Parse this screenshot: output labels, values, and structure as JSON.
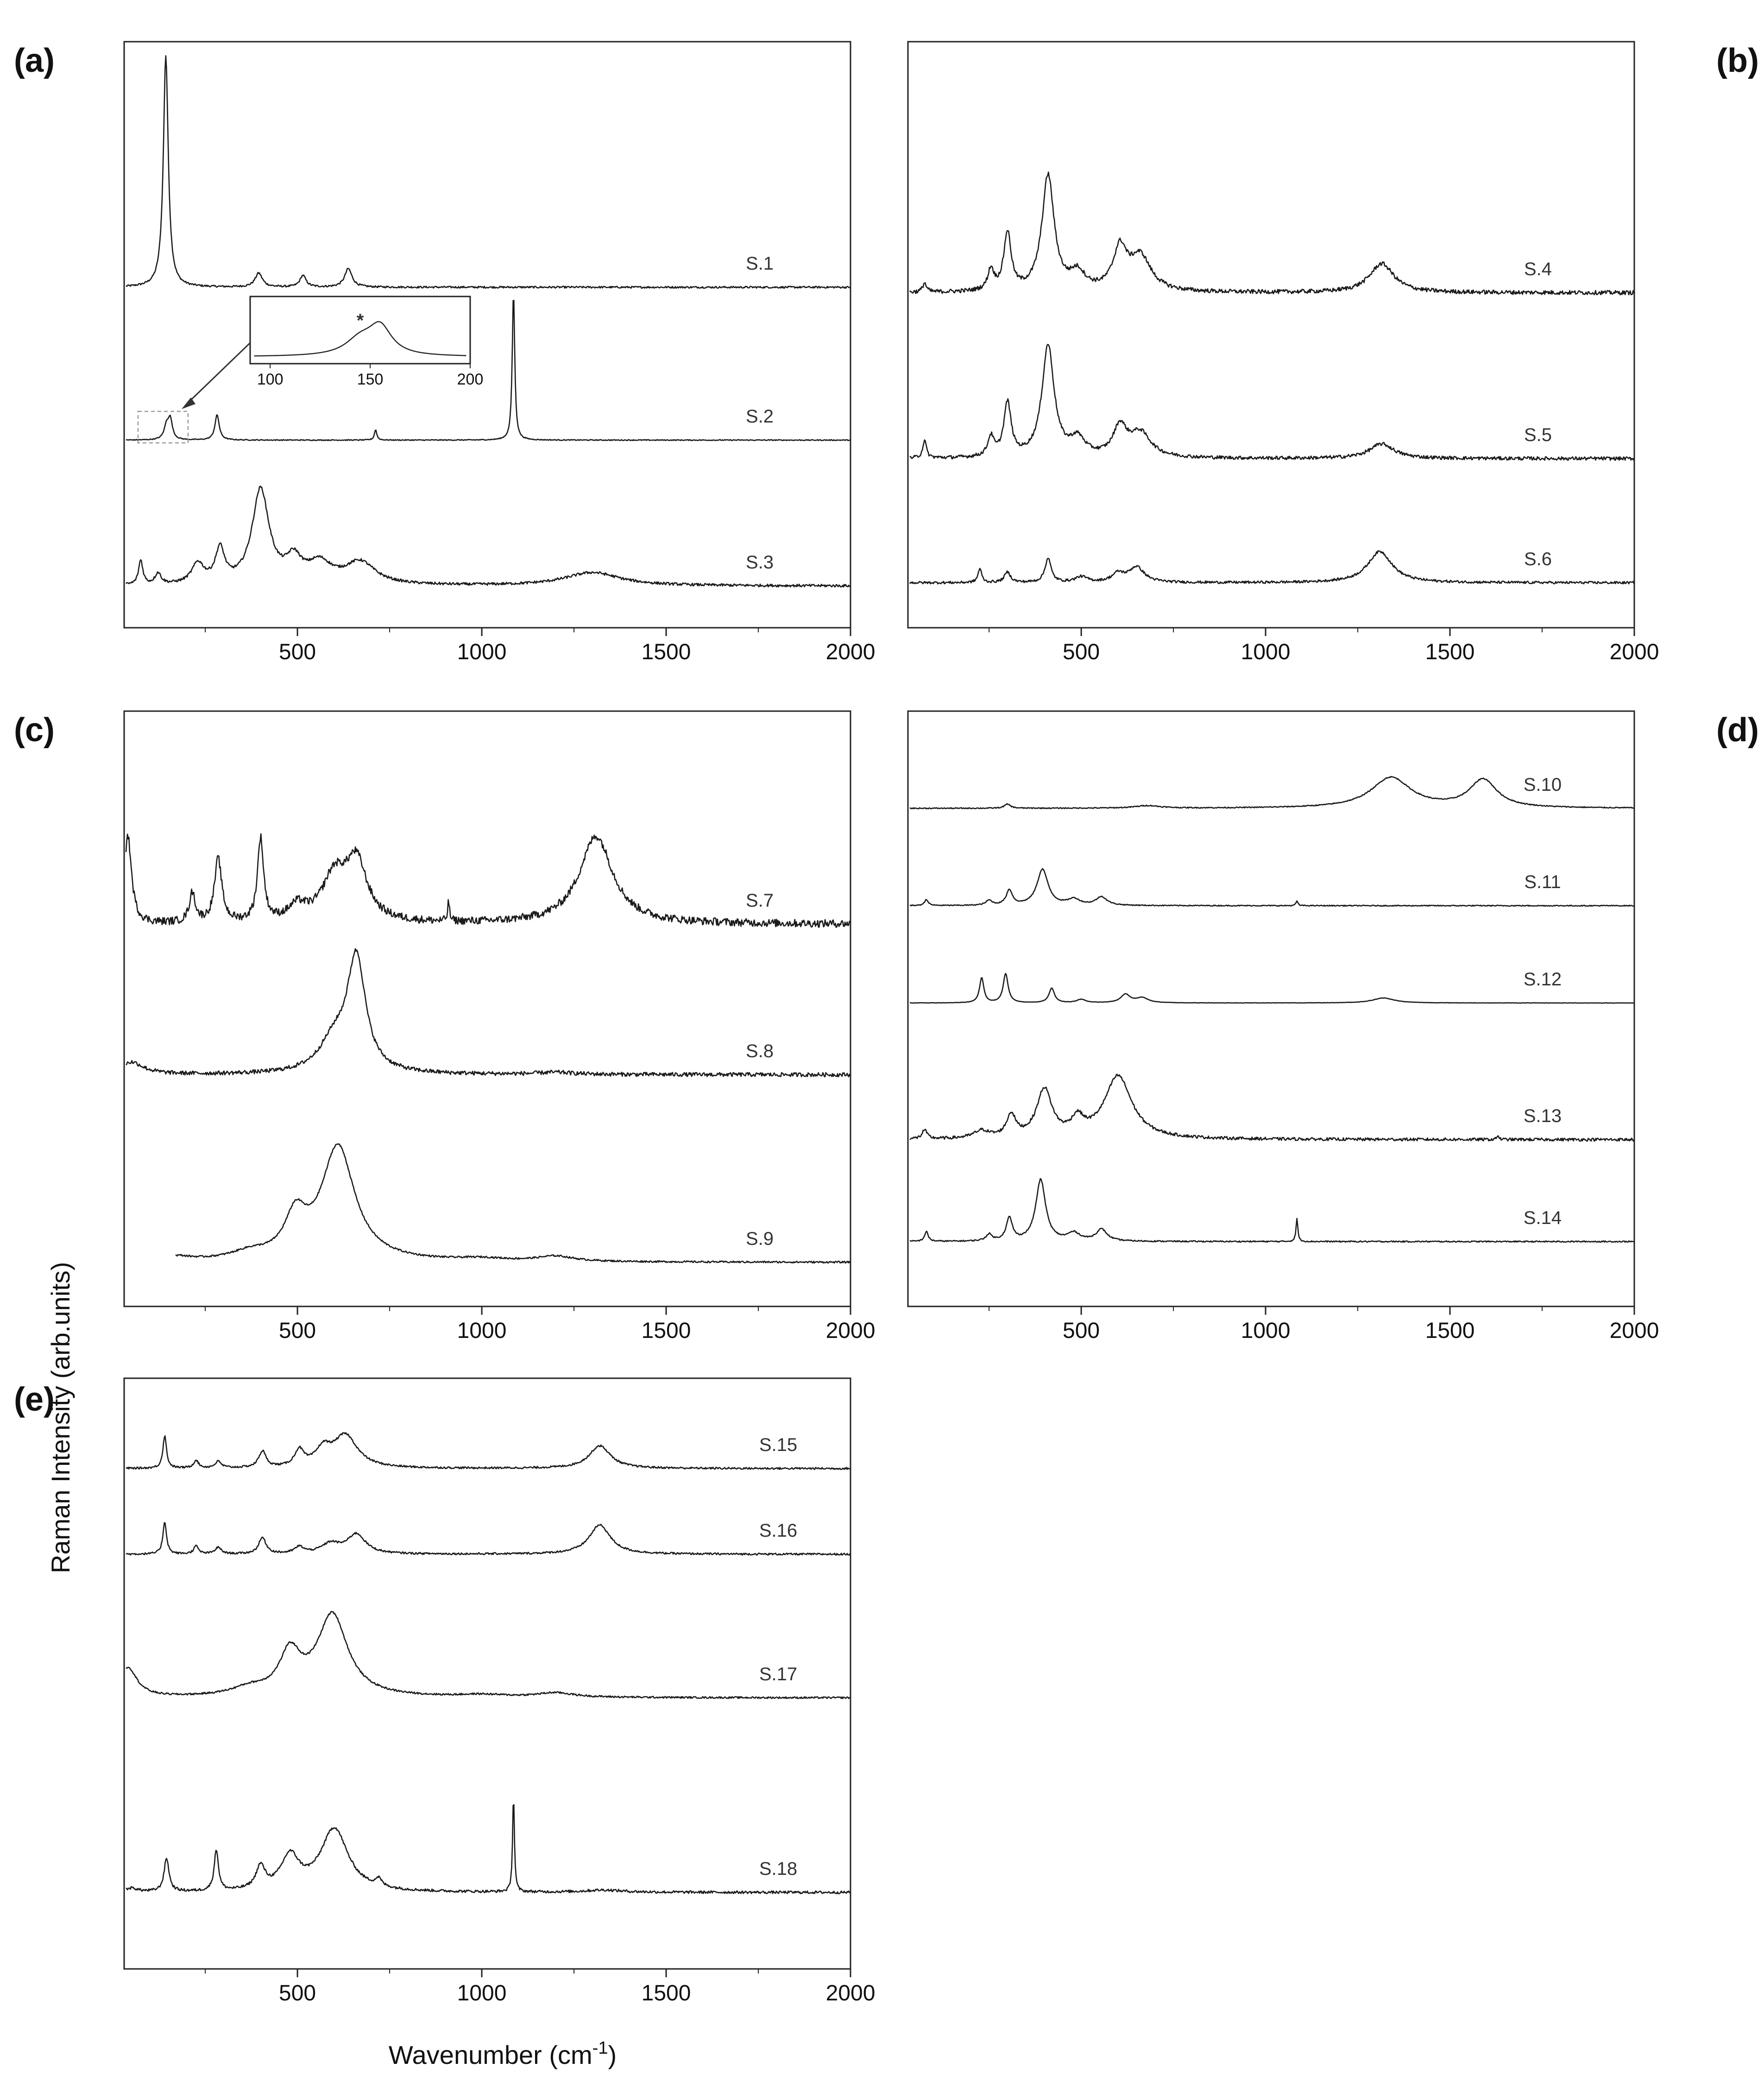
{
  "figure": {
    "xlabel": "Wavenumber (cm",
    "xlabel_sup": "-1",
    "xlabel_end": ")",
    "ylabel": "Raman Intensity (arb.units)"
  },
  "chart_data": [
    {
      "type": "line",
      "panel": "(a)",
      "xlim": [
        30,
        2000
      ],
      "xticks": [
        "500",
        "1000",
        "1500",
        "2000"
      ],
      "series": [
        {
          "name": "S.1",
          "noise": 0.004,
          "peaks": [
            [
              143,
              1.0,
              8
            ],
            [
              395,
              0.06,
              12
            ],
            [
              515,
              0.05,
              10
            ],
            [
              638,
              0.08,
              12
            ]
          ]
        },
        {
          "name": "S.2",
          "noise": 0.003,
          "peaks": [
            [
              145,
              0.09,
              8
            ],
            [
              155,
              0.13,
              7
            ],
            [
              282,
              0.17,
              7
            ],
            [
              712,
              0.07,
              4
            ],
            [
              1086,
              1.0,
              4
            ]
          ]
        },
        {
          "name": "S.3",
          "noise": 0.012,
          "peaks": [
            [
              75,
              0.22,
              7
            ],
            [
              122,
              0.1,
              10
            ],
            [
              230,
              0.18,
              20
            ],
            [
              290,
              0.3,
              15
            ],
            [
              400,
              0.85,
              28
            ],
            [
              490,
              0.2,
              25
            ],
            [
              560,
              0.18,
              40
            ],
            [
              670,
              0.2,
              50
            ],
            [
              1300,
              0.12,
              90
            ]
          ]
        }
      ],
      "inset": {
        "xlim": [
          90,
          200
        ],
        "xticks": [
          "100",
          "150",
          "200"
        ],
        "marker": "*",
        "peaks": [
          [
            145,
            0.45,
            9
          ],
          [
            155,
            0.8,
            7
          ]
        ]
      }
    },
    {
      "type": "line",
      "panel": "(b)",
      "xlim": [
        30,
        2000
      ],
      "xticks": [
        "500",
        "1000",
        "1500",
        "2000"
      ],
      "series": [
        {
          "name": "S.4",
          "noise": 0.018,
          "peaks": [
            [
              75,
              0.08,
              6
            ],
            [
              255,
              0.18,
              10
            ],
            [
              300,
              0.5,
              12
            ],
            [
              410,
              1.0,
              20
            ],
            [
              490,
              0.15,
              25
            ],
            [
              605,
              0.35,
              22
            ],
            [
              660,
              0.3,
              35
            ],
            [
              1315,
              0.25,
              40
            ]
          ]
        },
        {
          "name": "S.5",
          "noise": 0.018,
          "peaks": [
            [
              75,
              0.18,
              6
            ],
            [
              255,
              0.2,
              10
            ],
            [
              300,
              0.55,
              12
            ],
            [
              410,
              1.15,
              20
            ],
            [
              490,
              0.18,
              25
            ],
            [
              605,
              0.3,
              22
            ],
            [
              660,
              0.25,
              35
            ],
            [
              1315,
              0.15,
              40
            ]
          ]
        },
        {
          "name": "S.6",
          "noise": 0.018,
          "peaks": [
            [
              225,
              0.2,
              6
            ],
            [
              300,
              0.15,
              10
            ],
            [
              410,
              0.35,
              10
            ],
            [
              500,
              0.08,
              20
            ],
            [
              600,
              0.12,
              20
            ],
            [
              650,
              0.22,
              25
            ],
            [
              1310,
              0.45,
              40
            ]
          ]
        }
      ]
    },
    {
      "type": "line",
      "panel": "(c)",
      "xlim": [
        30,
        2000
      ],
      "xticks": [
        "500",
        "1000",
        "1500",
        "2000"
      ],
      "series": [
        {
          "name": "S.7",
          "noise": 0.04,
          "peaks": [
            [
              40,
              0.9,
              12
            ],
            [
              215,
              0.3,
              10
            ],
            [
              285,
              0.65,
              12
            ],
            [
              400,
              0.85,
              10
            ],
            [
              500,
              0.15,
              30
            ],
            [
              600,
              0.45,
              40
            ],
            [
              660,
              0.6,
              35
            ],
            [
              910,
              0.2,
              3
            ],
            [
              1310,
              0.9,
              55
            ]
          ]
        },
        {
          "name": "S.8",
          "noise": 0.02,
          "peaks": [
            [
              50,
              0.12,
              40
            ],
            [
              600,
              0.3,
              50
            ],
            [
              660,
              1.1,
              30
            ],
            [
              1200,
              0.02,
              60
            ]
          ]
        },
        {
          "name": "S.9",
          "noise": 0.01,
          "start": 170,
          "peaks": [
            [
              170,
              0.05,
              50
            ],
            [
              370,
              0.08,
              60
            ],
            [
              495,
              0.45,
              35
            ],
            [
              610,
              1.3,
              55
            ],
            [
              1000,
              0.03,
              80
            ],
            [
              1200,
              0.06,
              60
            ]
          ]
        }
      ]
    },
    {
      "type": "line",
      "panel": "(d)",
      "xlim": [
        30,
        2000
      ],
      "xticks": [
        "500",
        "1000",
        "1500",
        "2000"
      ],
      "series": [
        {
          "name": "S.10",
          "noise": 0.01,
          "peaks": [
            [
              300,
              0.08,
              10
            ],
            [
              680,
              0.05,
              40
            ],
            [
              1340,
              0.6,
              65
            ],
            [
              1590,
              0.55,
              45
            ]
          ]
        },
        {
          "name": "S.11",
          "noise": 0.008,
          "peaks": [
            [
              80,
              0.1,
              6
            ],
            [
              250,
              0.08,
              10
            ],
            [
              305,
              0.25,
              10
            ],
            [
              395,
              0.6,
              18
            ],
            [
              480,
              0.1,
              20
            ],
            [
              555,
              0.14,
              18
            ],
            [
              1085,
              0.08,
              3
            ]
          ]
        },
        {
          "name": "S.12",
          "noise": 0.004,
          "peaks": [
            [
              230,
              0.6,
              7
            ],
            [
              295,
              0.7,
              8
            ],
            [
              420,
              0.35,
              9
            ],
            [
              500,
              0.08,
              15
            ],
            [
              620,
              0.2,
              15
            ],
            [
              665,
              0.12,
              20
            ],
            [
              1320,
              0.12,
              35
            ]
          ]
        },
        {
          "name": "S.13",
          "noise": 0.02,
          "peaks": [
            [
              75,
              0.12,
              8
            ],
            [
              230,
              0.1,
              25
            ],
            [
              310,
              0.3,
              15
            ],
            [
              400,
              0.65,
              25
            ],
            [
              490,
              0.22,
              20
            ],
            [
              600,
              0.85,
              45
            ],
            [
              1630,
              0.06,
              3
            ]
          ]
        },
        {
          "name": "S.14",
          "noise": 0.01,
          "peaks": [
            [
              80,
              0.15,
              6
            ],
            [
              250,
              0.1,
              10
            ],
            [
              305,
              0.35,
              10
            ],
            [
              390,
              0.95,
              16
            ],
            [
              480,
              0.12,
              20
            ],
            [
              555,
              0.18,
              18
            ],
            [
              1085,
              0.35,
              3
            ]
          ]
        }
      ]
    },
    {
      "type": "line",
      "panel": "(e)",
      "xlim": [
        30,
        2000
      ],
      "xticks": [
        "500",
        "1000",
        "1500",
        "2000"
      ],
      "series": [
        {
          "name": "S.15",
          "noise": 0.015,
          "peaks": [
            [
              140,
              0.5,
              6
            ],
            [
              225,
              0.12,
              8
            ],
            [
              285,
              0.1,
              10
            ],
            [
              405,
              0.25,
              12
            ],
            [
              505,
              0.25,
              15
            ],
            [
              570,
              0.25,
              25
            ],
            [
              630,
              0.5,
              40
            ],
            [
              1320,
              0.35,
              35
            ]
          ]
        },
        {
          "name": "S.16",
          "noise": 0.015,
          "peaks": [
            [
              140,
              0.5,
              6
            ],
            [
              225,
              0.12,
              8
            ],
            [
              285,
              0.1,
              10
            ],
            [
              405,
              0.25,
              12
            ],
            [
              505,
              0.1,
              15
            ],
            [
              590,
              0.15,
              30
            ],
            [
              660,
              0.3,
              30
            ],
            [
              1320,
              0.45,
              35
            ]
          ]
        },
        {
          "name": "S.17",
          "noise": 0.012,
          "peaks": [
            [
              40,
              0.4,
              30
            ],
            [
              370,
              0.1,
              60
            ],
            [
              480,
              0.55,
              35
            ],
            [
              595,
              1.1,
              50
            ],
            [
              1000,
              0.03,
              80
            ],
            [
              1200,
              0.06,
              60
            ]
          ]
        },
        {
          "name": "S.18",
          "noise": 0.018,
          "peaks": [
            [
              50,
              0.05,
              20
            ],
            [
              145,
              0.45,
              8
            ],
            [
              280,
              0.55,
              7
            ],
            [
              400,
              0.3,
              15
            ],
            [
              480,
              0.45,
              30
            ],
            [
              600,
              0.85,
              45
            ],
            [
              720,
              0.1,
              10
            ],
            [
              1086,
              1.3,
              3
            ],
            [
              1330,
              0.03,
              60
            ]
          ]
        }
      ]
    }
  ]
}
